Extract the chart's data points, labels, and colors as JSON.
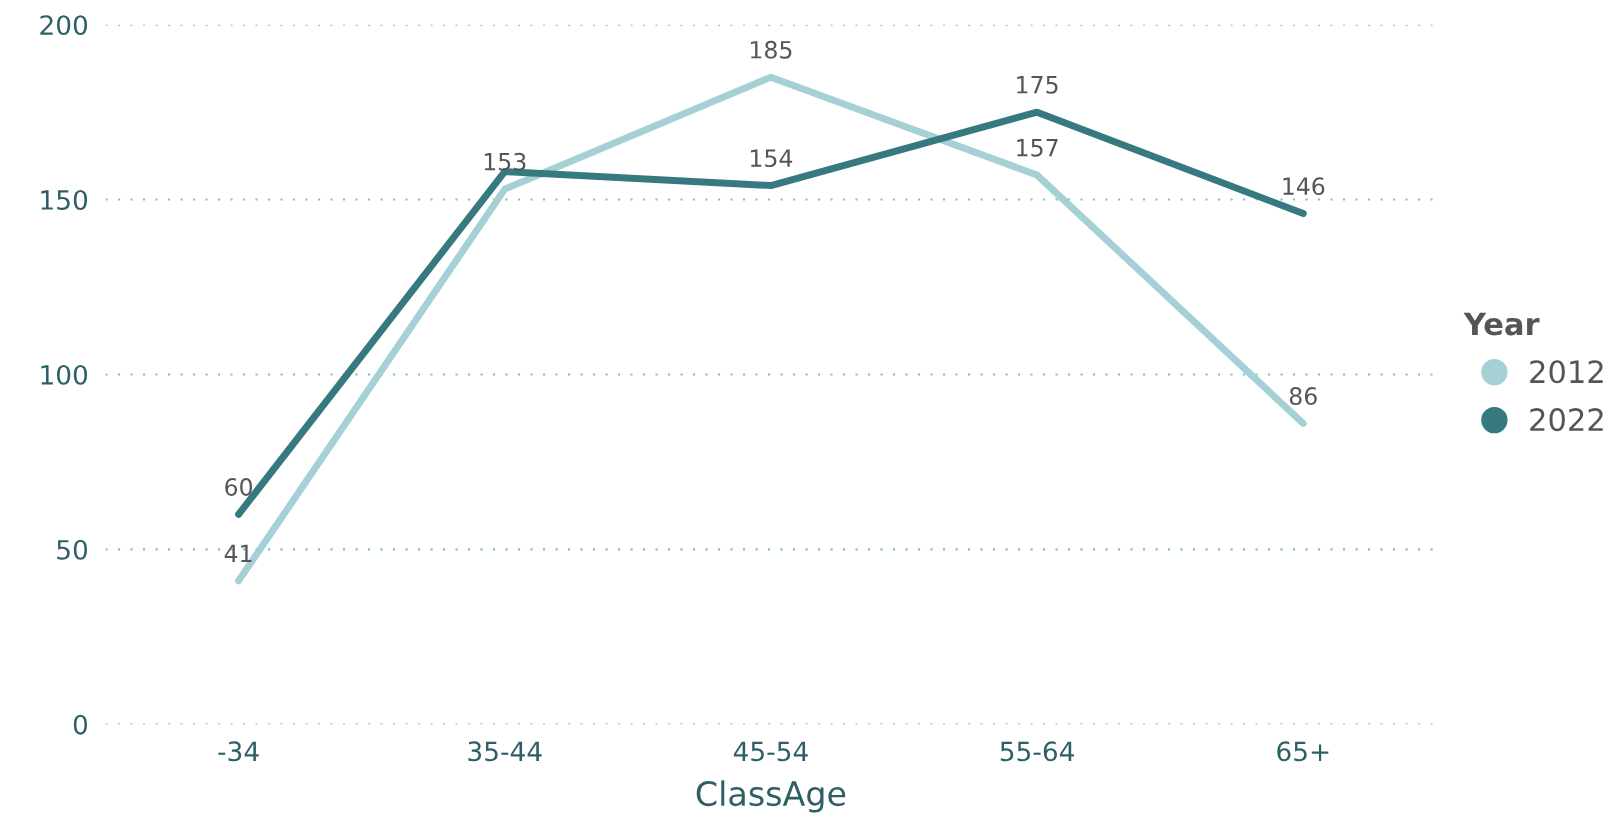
{
  "chart_data": {
    "type": "line",
    "xlabel": "ClassAge",
    "legend_title": "Year",
    "categories": [
      "-34",
      "35-44",
      "45-54",
      "55-64",
      "65+"
    ],
    "series": [
      {
        "name": "2012",
        "color": "#a5d0d6",
        "values": [
          41,
          153,
          185,
          157,
          86
        ],
        "value_labels": [
          "41",
          "153",
          "185",
          "157",
          "86"
        ]
      },
      {
        "name": "2022",
        "color": "#367a80",
        "values": [
          60,
          158,
          154,
          175,
          146
        ],
        "value_labels": [
          "60",
          null,
          "154",
          "175",
          "146"
        ]
      }
    ],
    "ylim": [
      0,
      200
    ],
    "yticks": [
      0,
      50,
      100,
      150,
      200
    ],
    "grid": "y",
    "legend": "right",
    "marker": "none",
    "line_style": "solid"
  }
}
